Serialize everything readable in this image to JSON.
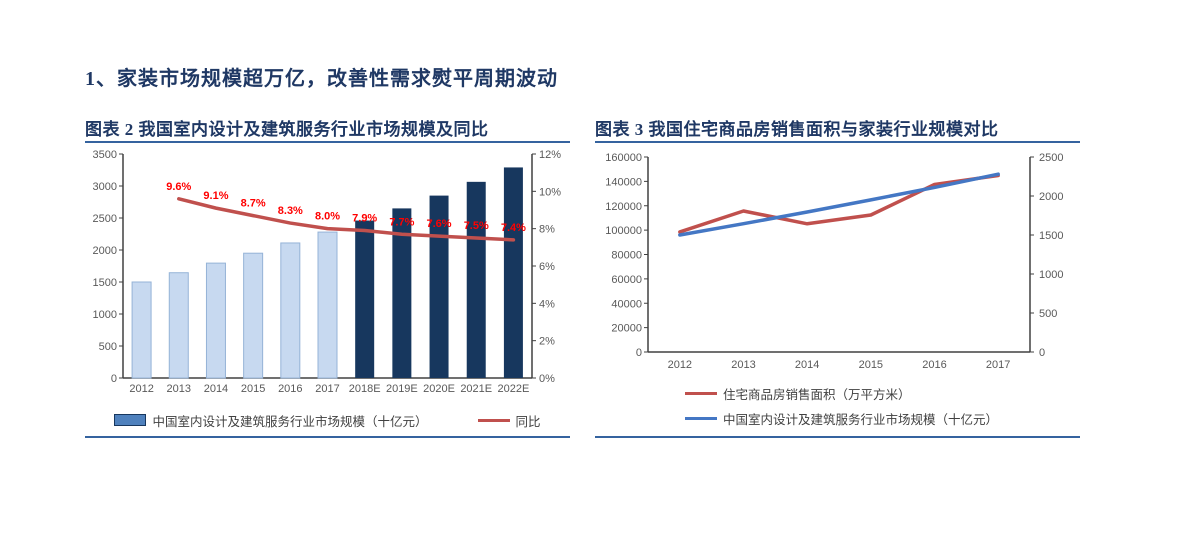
{
  "heading": {
    "text": "1、家装市场规模超万亿，改善性需求熨平周期波动"
  },
  "colors": {
    "heading_text": "#1F3864",
    "title_text": "#1F3864",
    "rule_blue": "#35639F",
    "axis_line": "#404040",
    "tick_text": "#595959",
    "bar_light_fill": "#C7D9F0",
    "bar_light_stroke": "#95B3D7",
    "bar_dark_fill": "#17375E",
    "line_red": "#C0504D",
    "line_blue": "#4477C4",
    "pct_label_red": "#FF0000",
    "legend_bar_fill": "#4F81BD",
    "legend_bar_stroke": "#17375E"
  },
  "chart_data": [
    {
      "type": "bar",
      "subtype": "bar+line-dual-axis",
      "title": "图表 2  我国室内设计及建筑服务行业市场规模及同比",
      "categories": [
        "2012",
        "2013",
        "2014",
        "2015",
        "2016",
        "2017",
        "2018E",
        "2019E",
        "2020E",
        "2021E",
        "2022E"
      ],
      "bar_series": {
        "name": "中国室内设计及建筑服务行业市场规模（十亿元）",
        "values": [
          1500,
          1645,
          1795,
          1950,
          2110,
          2280,
          2460,
          2650,
          2850,
          3065,
          3290
        ],
        "light_bar_count": 6
      },
      "line_series": {
        "name": "同比",
        "values_pct": [
          null,
          9.6,
          9.1,
          8.7,
          8.3,
          8.0,
          7.9,
          7.7,
          7.6,
          7.5,
          7.4
        ],
        "point_labels": [
          "9.6%",
          "9.1%",
          "8.7%",
          "8.3%",
          "8.0%",
          "7.9%",
          "7.7%",
          "7.6%",
          "7.5%",
          "7.4%"
        ]
      },
      "y_left": {
        "min": 0,
        "max": 3500,
        "step": 500,
        "tick_labels": [
          "3500",
          "3000",
          "2500",
          "2000",
          "1500",
          "1000",
          "500",
          "0"
        ]
      },
      "y_right": {
        "min": 0,
        "max": 12,
        "step": 2,
        "tick_labels": [
          "12%",
          "10%",
          "8%",
          "6%",
          "4%",
          "2%",
          "0%"
        ]
      },
      "legend": [
        "中国室内设计及建筑服务行业市场规模（十亿元）",
        "同比"
      ],
      "grid": false,
      "legend_position": "bottom-center"
    },
    {
      "type": "line",
      "subtype": "two-lines-dual-axis",
      "title": "图表 3  我国住宅商品房销售面积与家装行业规模对比",
      "categories": [
        "2012",
        "2013",
        "2014",
        "2015",
        "2016",
        "2017"
      ],
      "series": [
        {
          "name": "住宅商品房销售面积（万平方米）",
          "axis": "left",
          "color_key": "line_red",
          "values": [
            98500,
            115700,
            105200,
            112400,
            137500,
            144800
          ]
        },
        {
          "name": "中国室内设计及建筑服务行业市场规模（十亿元）",
          "axis": "right",
          "color_key": "line_blue",
          "values": [
            1500,
            1645,
            1795,
            1950,
            2110,
            2280
          ]
        }
      ],
      "y_left": {
        "min": 0,
        "max": 160000,
        "step": 20000,
        "tick_labels": [
          "160000",
          "140000",
          "120000",
          "100000",
          "80000",
          "60000",
          "40000",
          "20000",
          "0"
        ]
      },
      "y_right": {
        "min": 0,
        "max": 2500,
        "step": 500,
        "tick_labels": [
          "2500",
          "2000",
          "1500",
          "1000",
          "500",
          "0"
        ]
      },
      "legend": [
        "住宅商品房销售面积（万平方米）",
        "中国室内设计及建筑服务行业市场规模（十亿元）"
      ],
      "grid": false,
      "legend_position": "bottom-left"
    }
  ]
}
